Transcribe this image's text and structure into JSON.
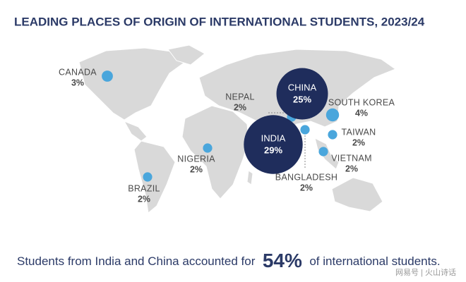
{
  "chart_data": {
    "type": "bubble-map",
    "title": "LEADING PLACES OF ORIGIN OF INTERNATIONAL STUDENTS, 2023/24",
    "categories": [
      "CANADA",
      "NEPAL",
      "CHINA",
      "SOUTH KOREA",
      "TAIWAN",
      "VIETNAM",
      "BANGLADESH",
      "INDIA",
      "NIGERIA",
      "BRAZIL"
    ],
    "values": [
      3,
      2,
      25,
      4,
      2,
      2,
      2,
      29,
      2,
      2
    ],
    "value_labels": [
      "3%",
      "2%",
      "25%",
      "4%",
      "2%",
      "2%",
      "2%",
      "29%",
      "2%",
      "2%"
    ],
    "colors": {
      "large": "#1f2d5c",
      "small": "#4aa6dc"
    },
    "footer": {
      "before": "Students from India and China accounted for",
      "highlight": "54%",
      "after": "of international students.",
      "highlight_value": 54
    },
    "watermark": "网易号 | 火山诗话"
  }
}
